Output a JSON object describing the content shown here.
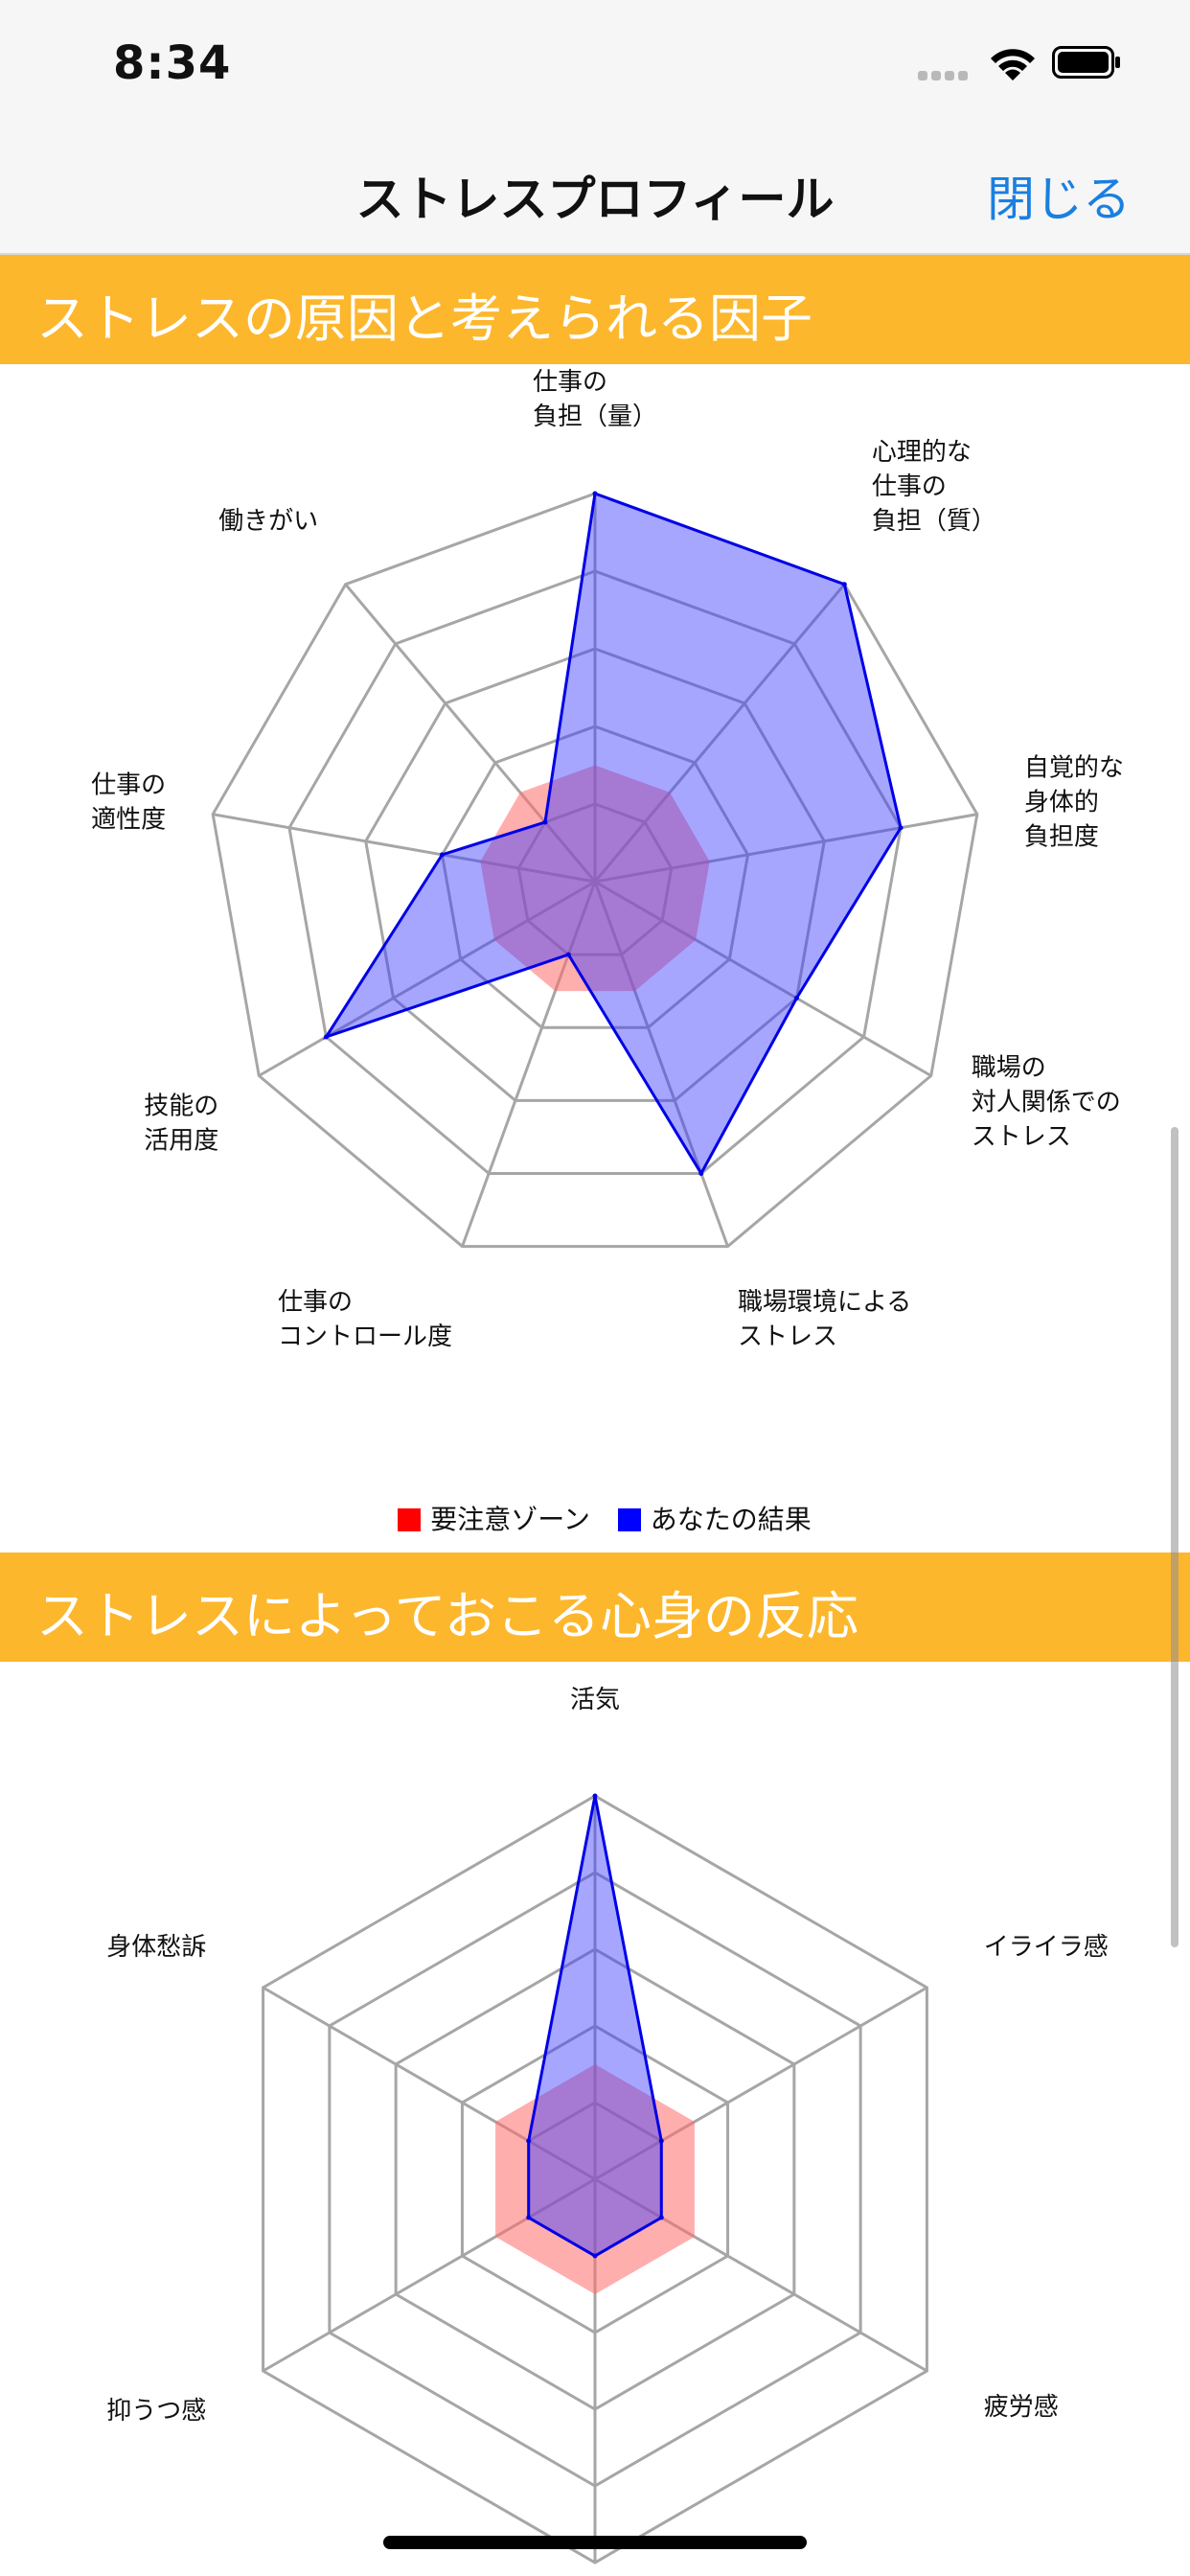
{
  "status_bar": {
    "time": "8:34"
  },
  "nav": {
    "title": "ストレスプロフィール",
    "close_label": "閉じる"
  },
  "sections": [
    {
      "title": "ストレスの原因と考えられる因子"
    },
    {
      "title": "ストレスによっておこる心身の反応"
    }
  ],
  "legend": [
    {
      "label": "要注意ゾーン",
      "color": "#ff0000"
    },
    {
      "label": "あなたの結果",
      "color": "#0000ff"
    }
  ],
  "colors": {
    "caution": "#ff6b6b",
    "result": "#3a3aff",
    "section_bg": "#fdb72c",
    "accent": "#1a7fe0"
  },
  "chart_data": [
    {
      "type": "radar",
      "categories": [
        "心理的な\n仕事の\n負担（量）",
        "心理的な\n仕事の\n負担（質）",
        "自覚的な\n身体的\n負担度",
        "職場の\n対人関係での\nストレス",
        "職場環境による\nストレス",
        "仕事の\nコントロール度",
        "技能の\n活用度",
        "仕事の\n適性度",
        "働きがい"
      ],
      "rmax": 5,
      "series": [
        {
          "name": "要注意ゾーン",
          "values": [
            1.5,
            1.5,
            1.5,
            1.5,
            1.5,
            1.5,
            1.5,
            1.5,
            1.5
          ],
          "color": "#ff6b6b"
        },
        {
          "name": "あなたの結果",
          "values": [
            5,
            5,
            4,
            3,
            4,
            1,
            4,
            2,
            1
          ],
          "color": "#3a3aff"
        }
      ]
    },
    {
      "type": "radar",
      "categories": [
        "活気",
        "イライラ感",
        "疲労感",
        "",
        "抑うつ感",
        "身体愁訴"
      ],
      "rmax": 5,
      "series": [
        {
          "name": "要注意ゾーン",
          "values": [
            1.5,
            1.5,
            1.5,
            1.5,
            1.5,
            1.5
          ],
          "color": "#ff6b6b"
        },
        {
          "name": "あなたの結果",
          "values": [
            5,
            1,
            1,
            1,
            1,
            1
          ],
          "color": "#3a3aff"
        }
      ]
    }
  ]
}
